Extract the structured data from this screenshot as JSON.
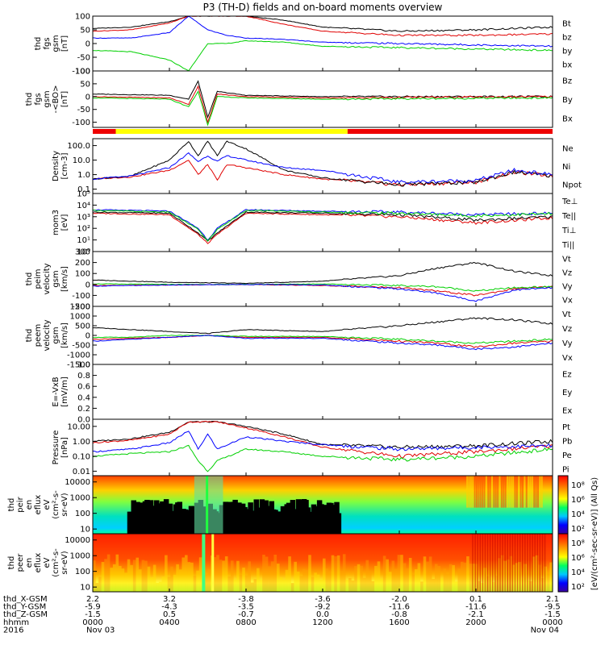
{
  "title": "P3 (TH-D) fields and on-board moments overview",
  "colors": {
    "black": "#000000",
    "red": "#e00000",
    "green": "#00d000",
    "blue": "#0000ff",
    "yellow": "#ffff00",
    "bar_red": "#ee0000"
  },
  "chart_data": [
    {
      "type": "line",
      "panel": "fgs_gsm",
      "ylabel": [
        "thd",
        "fgs",
        "gsm",
        "[nT]"
      ],
      "yticks": [
        "100",
        "50",
        "0",
        "-50",
        "-100"
      ],
      "ylim": [
        -100,
        100
      ],
      "series": [
        {
          "name": "Bt",
          "color": "black",
          "x": [
            0,
            2,
            4,
            5,
            6,
            7,
            8,
            10,
            12,
            16,
            20,
            24
          ],
          "values": [
            55,
            60,
            80,
            100,
            100,
            100,
            100,
            85,
            60,
            45,
            50,
            60
          ]
        },
        {
          "name": "bz",
          "color": "red",
          "x": [
            0,
            2,
            4,
            5,
            6,
            7,
            8,
            10,
            12,
            16,
            20,
            24
          ],
          "values": [
            45,
            50,
            75,
            100,
            100,
            100,
            100,
            70,
            45,
            30,
            30,
            35
          ]
        },
        {
          "name": "by",
          "color": "green",
          "x": [
            0,
            2,
            4,
            5,
            6,
            7,
            8,
            10,
            12,
            16,
            20,
            24
          ],
          "values": [
            -25,
            -30,
            -60,
            -100,
            0,
            0,
            10,
            5,
            -10,
            -15,
            -20,
            -25
          ]
        },
        {
          "name": "bx",
          "color": "blue",
          "x": [
            0,
            2,
            4,
            5,
            6,
            7,
            8,
            10,
            12,
            16,
            20,
            24
          ],
          "values": [
            20,
            20,
            40,
            100,
            50,
            30,
            20,
            15,
            5,
            0,
            -5,
            -10
          ]
        }
      ]
    },
    {
      "type": "line",
      "panel": "fgs_gsm_zoom",
      "ylabel": [
        "thd",
        "fgs",
        "gsm",
        "-<BO>",
        "[nT]"
      ],
      "yticks": [
        "100",
        "50",
        "0",
        "-50",
        "-100"
      ],
      "ylim": [
        -120,
        100
      ],
      "series": [
        {
          "name": "Bz",
          "color": "black",
          "x": [
            0,
            4,
            5,
            5.5,
            6,
            6.5,
            8,
            12,
            24
          ],
          "values": [
            10,
            5,
            -10,
            60,
            -80,
            20,
            5,
            0,
            0
          ]
        },
        {
          "name": "By",
          "color": "red",
          "x": [
            0,
            4,
            5,
            5.5,
            6,
            6.5,
            8,
            12,
            24
          ],
          "values": [
            0,
            -5,
            -30,
            40,
            -100,
            10,
            0,
            -5,
            0
          ]
        },
        {
          "name": "Bx",
          "color": "green",
          "x": [
            0,
            4,
            5,
            5.5,
            6,
            6.5,
            8,
            12,
            24
          ],
          "values": [
            -5,
            -10,
            -40,
            20,
            -110,
            0,
            -5,
            -10,
            -5
          ]
        }
      ]
    },
    {
      "type": "bar",
      "panel": "region_bar",
      "segments": [
        {
          "color": "bar_red",
          "x": [
            0,
            1.2
          ]
        },
        {
          "color": "yellow",
          "x": [
            1.2,
            13.3
          ]
        },
        {
          "color": "bar_red",
          "x": [
            13.3,
            24
          ]
        }
      ]
    },
    {
      "type": "line",
      "panel": "density",
      "ylabel": [
        "Density",
        "[cm-3]"
      ],
      "yscale": "log",
      "yticks": [
        "100.0",
        "10.0",
        "1.0",
        "0.1"
      ],
      "ylim": [
        0.05,
        300
      ],
      "series": [
        {
          "name": "Ne",
          "color": "red",
          "x": [
            0,
            2,
            4,
            5,
            5.5,
            6,
            6.5,
            7,
            8,
            10,
            12,
            16,
            20,
            22,
            24
          ],
          "values": [
            0.5,
            0.7,
            2.0,
            10,
            1.0,
            5.0,
            0.4,
            5.0,
            3.0,
            1.0,
            0.5,
            0.2,
            0.3,
            1.5,
            0.8
          ]
        },
        {
          "name": "Ni",
          "color": "black",
          "x": [
            0,
            2,
            4,
            5,
            5.5,
            6,
            6.5,
            7,
            8,
            10,
            12,
            16,
            20,
            22,
            24
          ],
          "values": [
            0.5,
            0.8,
            10,
            200,
            20,
            200,
            20,
            200,
            60,
            2.0,
            0.6,
            0.2,
            0.3,
            1.5,
            0.8
          ]
        },
        {
          "name": "Npot",
          "color": "blue",
          "x": [
            0,
            2,
            4,
            5,
            5.5,
            6,
            6.5,
            7,
            8,
            10,
            12,
            16,
            20,
            22,
            24
          ],
          "values": [
            0.5,
            0.8,
            3,
            30,
            8,
            20,
            8,
            20,
            10,
            3.0,
            2.0,
            0.3,
            0.4,
            2.0,
            1.0
          ]
        }
      ]
    },
    {
      "type": "line",
      "panel": "mom_temperature",
      "ylabel": [
        "mom3",
        "[eV]"
      ],
      "yscale": "log",
      "yticks": [
        "10⁵",
        "10⁴",
        "10³",
        "10²",
        "10¹",
        "10⁰"
      ],
      "ylim": [
        1,
        100000
      ],
      "series": [
        {
          "name": "Te⊥",
          "color": "red",
          "x": [
            0,
            4,
            5.5,
            6,
            6.5,
            8,
            12,
            16,
            20,
            24
          ],
          "values": [
            2000,
            1500,
            30,
            5,
            30,
            2000,
            1500,
            1000,
            300,
            800
          ]
        },
        {
          "name": "Te||",
          "color": "black",
          "x": [
            0,
            4,
            5.5,
            6,
            6.5,
            8,
            12,
            16,
            20,
            24
          ],
          "values": [
            2500,
            2000,
            40,
            8,
            40,
            2500,
            2000,
            1500,
            500,
            1000
          ]
        },
        {
          "name": "Ti⊥",
          "color": "blue",
          "x": [
            0,
            4,
            5.5,
            6,
            6.5,
            8,
            12,
            16,
            20,
            24
          ],
          "values": [
            4000,
            3000,
            100,
            10,
            100,
            4000,
            3000,
            2500,
            1500,
            2000
          ]
        },
        {
          "name": "Ti||",
          "color": "green",
          "x": [
            0,
            4,
            5.5,
            6,
            6.5,
            8,
            12,
            16,
            20,
            24
          ],
          "values": [
            3500,
            2500,
            80,
            8,
            80,
            3500,
            2500,
            2000,
            1200,
            1800
          ]
        }
      ]
    },
    {
      "type": "line",
      "panel": "peim_velocity",
      "ylabel": [
        "thd",
        "peim",
        "velocity",
        "gsm",
        "[km/s]"
      ],
      "yticks": [
        "300",
        "200",
        "100",
        "0",
        "-100",
        "-200"
      ],
      "ylim": [
        -200,
        300
      ],
      "series": [
        {
          "name": "Vt",
          "color": "black",
          "x": [
            0,
            4,
            8,
            12,
            16,
            18,
            20,
            22,
            24
          ],
          "values": [
            40,
            20,
            10,
            30,
            80,
            150,
            200,
            120,
            80
          ]
        },
        {
          "name": "Vz",
          "color": "red",
          "x": [
            0,
            4,
            8,
            12,
            16,
            18,
            20,
            22,
            24
          ],
          "values": [
            -10,
            -5,
            0,
            -10,
            -30,
            -60,
            -100,
            -40,
            -20
          ]
        },
        {
          "name": "Vy",
          "color": "green",
          "x": [
            0,
            4,
            8,
            12,
            16,
            18,
            20,
            22,
            24
          ],
          "values": [
            5,
            0,
            0,
            5,
            -10,
            -20,
            -60,
            -30,
            -20
          ]
        },
        {
          "name": "Vx",
          "color": "blue",
          "x": [
            0,
            4,
            8,
            12,
            16,
            18,
            20,
            22,
            24
          ],
          "values": [
            -15,
            -5,
            0,
            -5,
            -40,
            -80,
            -150,
            -50,
            -30
          ]
        }
      ]
    },
    {
      "type": "line",
      "panel": "peem_velocity",
      "ylabel": [
        "thd",
        "peem",
        "velocity",
        "gsm",
        "[km/s]"
      ],
      "yticks": [
        "1500",
        "1000",
        "500",
        "0",
        "-500",
        "-1000",
        "-1500"
      ],
      "ylim": [
        -1500,
        1500
      ],
      "series": [
        {
          "name": "Vt",
          "color": "black",
          "x": [
            0,
            2,
            4,
            6,
            8,
            12,
            16,
            18,
            20,
            22,
            24
          ],
          "values": [
            400,
            300,
            200,
            100,
            300,
            200,
            500,
            700,
            900,
            800,
            600
          ]
        },
        {
          "name": "Vz",
          "color": "red",
          "x": [
            0,
            2,
            4,
            6,
            8,
            12,
            16,
            18,
            20,
            22,
            24
          ],
          "values": [
            -200,
            -150,
            -100,
            0,
            -100,
            -100,
            -300,
            -400,
            -600,
            -400,
            -300
          ]
        },
        {
          "name": "Vy",
          "color": "green",
          "x": [
            0,
            2,
            4,
            6,
            8,
            12,
            16,
            18,
            20,
            22,
            24
          ],
          "values": [
            -100,
            -100,
            0,
            0,
            -50,
            -50,
            -200,
            -300,
            -400,
            -300,
            -200
          ]
        },
        {
          "name": "Vx",
          "color": "blue",
          "x": [
            0,
            2,
            4,
            6,
            8,
            12,
            16,
            18,
            20,
            22,
            24
          ],
          "values": [
            -300,
            -200,
            -100,
            0,
            -150,
            -150,
            -400,
            -500,
            -700,
            -600,
            -400
          ]
        }
      ]
    },
    {
      "type": "line",
      "panel": "electric_field",
      "ylabel": [
        "E=-VxB",
        "[mV/m]"
      ],
      "yticks": [
        "1.0",
        "0.8",
        "0.6",
        "0.4",
        "0.2",
        "0.0"
      ],
      "ylim": [
        0,
        1
      ],
      "series": [
        {
          "name": "Ez",
          "color": "red",
          "x": [],
          "values": []
        },
        {
          "name": "Ey",
          "color": "green",
          "x": [],
          "values": []
        },
        {
          "name": "Ex",
          "color": "blue",
          "x": [],
          "values": []
        }
      ]
    },
    {
      "type": "line",
      "panel": "pressure",
      "ylabel": [
        "Pressure",
        "[nPa]"
      ],
      "yscale": "log",
      "yticks": [
        "10.00",
        "1.00",
        "0.10",
        "0.01"
      ],
      "ylim": [
        0.005,
        30
      ],
      "series": [
        {
          "name": "Pt",
          "color": "black",
          "x": [
            0,
            2,
            4,
            5,
            5.5,
            6,
            6.5,
            8,
            10,
            12,
            16,
            20,
            24
          ],
          "values": [
            1.0,
            1.5,
            4,
            20,
            20,
            20,
            20,
            10,
            3,
            0.6,
            0.4,
            0.5,
            1.0
          ]
        },
        {
          "name": "Pb",
          "color": "red",
          "x": [
            0,
            2,
            4,
            5,
            5.5,
            6,
            6.5,
            8,
            10,
            12,
            16,
            20,
            24
          ],
          "values": [
            0.8,
            1.2,
            3,
            20,
            20,
            20,
            20,
            8,
            2,
            0.4,
            0.1,
            0.2,
            0.5
          ]
        },
        {
          "name": "Pe",
          "color": "green",
          "x": [
            0,
            2,
            4,
            5,
            5.5,
            6,
            6.5,
            8,
            10,
            12,
            16,
            20,
            24
          ],
          "values": [
            0.1,
            0.15,
            0.2,
            0.5,
            0.05,
            0.01,
            0.05,
            0.3,
            0.2,
            0.1,
            0.06,
            0.1,
            0.3
          ]
        },
        {
          "name": "Pi",
          "color": "blue",
          "x": [
            0,
            2,
            4,
            5,
            5.5,
            6,
            6.5,
            8,
            10,
            12,
            16,
            20,
            24
          ],
          "values": [
            0.2,
            0.3,
            0.8,
            5,
            0.3,
            3,
            0.3,
            2,
            1.0,
            0.6,
            0.3,
            0.4,
            0.5
          ]
        }
      ]
    },
    {
      "type": "heatmap",
      "panel": "peir_en_eflux",
      "ylabel": [
        "thd",
        "peir",
        "en",
        "eflux",
        "eV",
        "(cm²-s-",
        "sr-eV)"
      ],
      "yscale": "log",
      "yticks": [
        "10000",
        "1000",
        "100",
        "10"
      ],
      "ylim": [
        5,
        25000
      ]
    },
    {
      "type": "heatmap",
      "panel": "peer_en_eflux",
      "ylabel": [
        "thd",
        "peer",
        "en",
        "eflux",
        "eV",
        "(cm²-s-",
        "sr-eV)"
      ],
      "yscale": "log",
      "yticks": [
        "10000",
        "1000",
        "100",
        "10"
      ],
      "ylim": [
        5,
        25000
      ]
    }
  ],
  "colorbar": {
    "label": "[eV/(cm²-sec-sr-eV)] (All Qs)",
    "upper_ticks": [
      "10⁸",
      "10⁶",
      "10⁴",
      "10²"
    ],
    "lower_ticks": [
      "10⁸",
      "10⁶",
      "10⁴",
      "10²"
    ]
  },
  "x_axis": {
    "row_labels": [
      "thd_X-GSM",
      "thd_Y-GSM",
      "thd_Z-GSM",
      "hhmm",
      "2016"
    ],
    "columns": [
      {
        "x": 0,
        "rows": [
          "2.2",
          "-5.9",
          "-1.5",
          "0000",
          "Nov 03"
        ]
      },
      {
        "x": 4,
        "rows": [
          "3.2",
          "-4.3",
          "0.5",
          "0400",
          ""
        ]
      },
      {
        "x": 8,
        "rows": [
          "-3.8",
          "-3.5",
          "-0.7",
          "0800",
          ""
        ]
      },
      {
        "x": 12,
        "rows": [
          "-3.6",
          "-9.2",
          "0.0",
          "1200",
          ""
        ]
      },
      {
        "x": 16,
        "rows": [
          "-2.0",
          "-11.6",
          "-0.8",
          "1600",
          ""
        ]
      },
      {
        "x": 20,
        "rows": [
          "0.1",
          "-11.6",
          "-2.1",
          "2000",
          ""
        ]
      },
      {
        "x": 24,
        "rows": [
          "2.1",
          "-9.5",
          "-1.5",
          "0000",
          "Nov 04"
        ]
      }
    ]
  }
}
